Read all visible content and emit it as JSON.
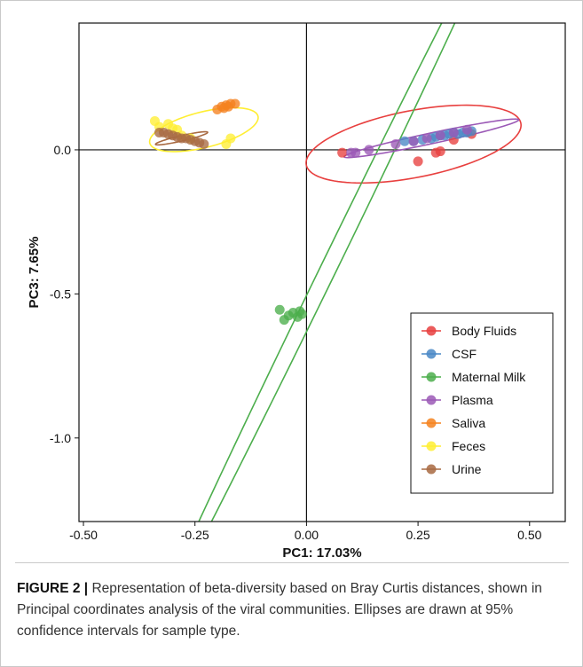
{
  "figure": {
    "label": "FIGURE 2 |",
    "caption": " Representation of beta-diversity based on Bray Curtis distances, shown in Principal coordinates analysis of the viral communities. Ellipses are drawn at 95% confidence intervals for sample type."
  },
  "chart_data": {
    "type": "scatter",
    "xlabel": "PC1: 17.03%",
    "ylabel": "PC3: 7.65%",
    "xlim": [
      -0.51,
      0.58
    ],
    "ylim": [
      -1.29,
      0.44
    ],
    "x_ticks": [
      -0.5,
      -0.25,
      0.0,
      0.25,
      0.5
    ],
    "x_tick_labels": [
      "-0.50",
      "-0.25",
      "0.00",
      "0.25",
      "0.50"
    ],
    "y_ticks": [
      0.0,
      -0.5,
      -1.0
    ],
    "y_tick_labels": [
      "0.0",
      "-0.5",
      "-1.0"
    ],
    "zero_lines": true,
    "grid": false,
    "legend_position": "bottom-right",
    "series": [
      {
        "name": "Body Fluids",
        "color": "#e8403f",
        "points": [
          [
            0.08,
            -0.01
          ],
          [
            0.25,
            -0.04
          ],
          [
            0.29,
            -0.01
          ],
          [
            0.3,
            -0.005
          ],
          [
            0.33,
            0.035
          ],
          [
            0.37,
            0.055
          ]
        ],
        "ellipse": {
          "cx": 0.24,
          "cy": 0.02,
          "rx": 0.245,
          "ry": 0.075,
          "angle": 11
        }
      },
      {
        "name": "CSF",
        "color": "#4a88c5",
        "points": [
          [
            0.22,
            0.03
          ],
          [
            0.24,
            0.03
          ],
          [
            0.26,
            0.035
          ],
          [
            0.28,
            0.04
          ],
          [
            0.29,
            0.045
          ],
          [
            0.3,
            0.05
          ],
          [
            0.31,
            0.05
          ],
          [
            0.32,
            0.055
          ],
          [
            0.33,
            0.06
          ],
          [
            0.34,
            0.055
          ],
          [
            0.35,
            0.06
          ],
          [
            0.36,
            0.06
          ],
          [
            0.37,
            0.065
          ]
        ],
        "ellipse": null
      },
      {
        "name": "Maternal Milk",
        "color": "#4cae4c",
        "points": [
          [
            -0.06,
            -0.555
          ],
          [
            -0.05,
            -0.59
          ],
          [
            -0.04,
            -0.575
          ],
          [
            -0.03,
            -0.565
          ],
          [
            -0.02,
            -0.58
          ],
          [
            -0.01,
            -0.57
          ],
          [
            -0.015,
            -0.56
          ]
        ],
        "ellipse": {
          "cx": 0.05,
          "cy": -0.41,
          "rx": 0.9,
          "ry": 0.018,
          "angle": 64
        }
      },
      {
        "name": "Plasma",
        "color": "#9b59b6",
        "points": [
          [
            0.1,
            -0.01
          ],
          [
            0.11,
            -0.01
          ],
          [
            0.14,
            0.0
          ],
          [
            0.2,
            0.02
          ],
          [
            0.24,
            0.03
          ],
          [
            0.27,
            0.04
          ],
          [
            0.3,
            0.05
          ],
          [
            0.33,
            0.06
          ],
          [
            0.36,
            0.07
          ]
        ],
        "ellipse": {
          "cx": 0.28,
          "cy": 0.04,
          "rx": 0.2,
          "ry": 0.012,
          "angle": 12
        }
      },
      {
        "name": "Saliva",
        "color": "#f5821f",
        "points": [
          [
            -0.2,
            0.14
          ],
          [
            -0.19,
            0.15
          ],
          [
            -0.18,
            0.155
          ],
          [
            -0.17,
            0.16
          ],
          [
            -0.16,
            0.16
          ],
          [
            -0.185,
            0.145
          ],
          [
            -0.175,
            0.15
          ]
        ],
        "ellipse": null
      },
      {
        "name": "Feces",
        "color": "#ffee33",
        "points": [
          [
            -0.34,
            0.1
          ],
          [
            -0.33,
            0.08
          ],
          [
            -0.31,
            0.09
          ],
          [
            -0.3,
            0.075
          ],
          [
            -0.29,
            0.07
          ],
          [
            -0.26,
            0.04
          ],
          [
            -0.17,
            0.04
          ],
          [
            -0.18,
            0.02
          ],
          [
            -0.28,
            0.05
          ]
        ],
        "ellipse": {
          "cx": -0.23,
          "cy": 0.07,
          "rx": 0.125,
          "ry": 0.04,
          "angle": 14
        }
      },
      {
        "name": "Urine",
        "color": "#a86a42",
        "points": [
          [
            -0.33,
            0.06
          ],
          [
            -0.32,
            0.06
          ],
          [
            -0.31,
            0.055
          ],
          [
            -0.3,
            0.05
          ],
          [
            -0.29,
            0.045
          ],
          [
            -0.28,
            0.04
          ],
          [
            -0.27,
            0.04
          ],
          [
            -0.26,
            0.035
          ],
          [
            -0.25,
            0.03
          ],
          [
            -0.24,
            0.025
          ],
          [
            -0.23,
            0.02
          ]
        ],
        "ellipse": {
          "cx": -0.28,
          "cy": 0.04,
          "rx": 0.06,
          "ry": 0.006,
          "angle": 13
        }
      }
    ]
  }
}
